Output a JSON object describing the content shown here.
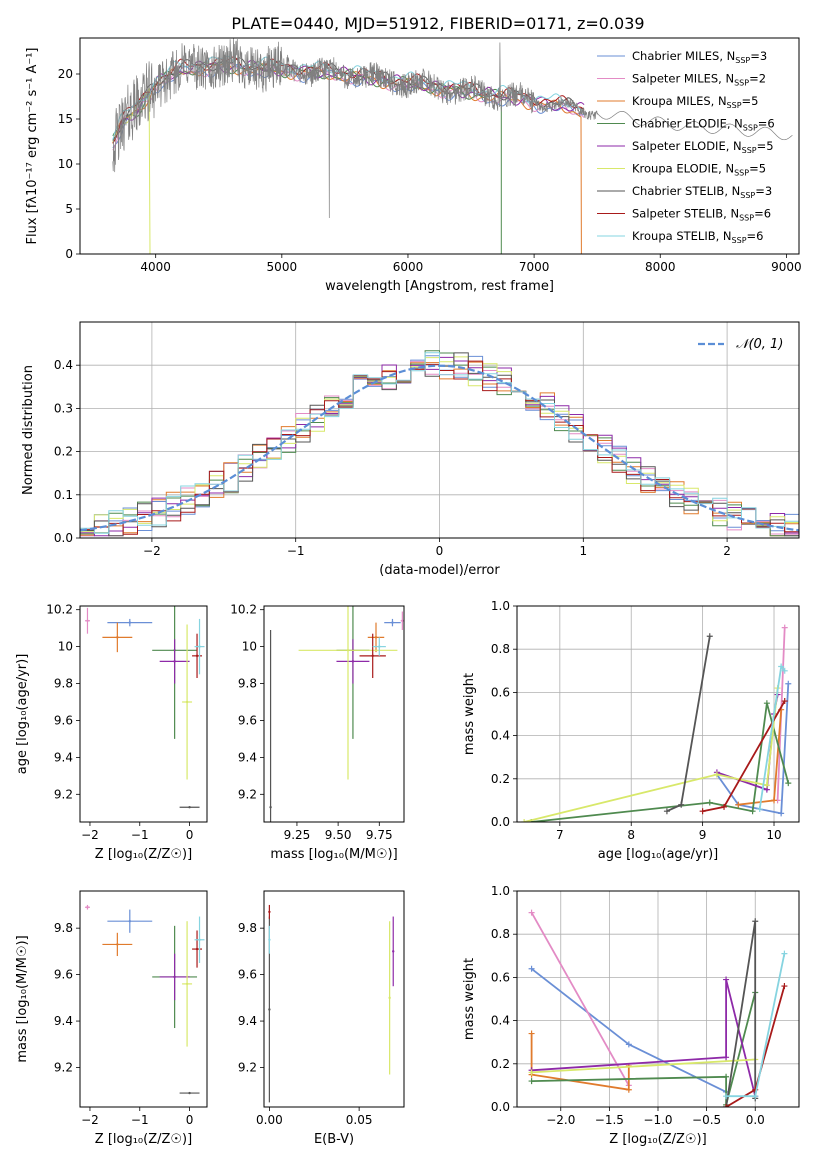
{
  "figure": {
    "title": "PLATE=0440, MJD=51912, FIBERID=0171, z=0.039"
  },
  "models": [
    {
      "name": "Chabrier MILES",
      "color": "#6a8fd6",
      "nssp": "3"
    },
    {
      "name": "Salpeter MILES",
      "color": "#e38bc5",
      "nssp": "2"
    },
    {
      "name": "Kroupa MILES",
      "color": "#e07b2d",
      "nssp": "5"
    },
    {
      "name": "Chabrier ELODIE",
      "color": "#4f8a4f",
      "nssp": "6"
    },
    {
      "name": "Salpeter ELODIE",
      "color": "#8e2aa8",
      "nssp": "5"
    },
    {
      "name": "Kroupa ELODIE",
      "color": "#d8e86a",
      "nssp": "5"
    },
    {
      "name": "Chabrier STELIB",
      "color": "#555555",
      "nssp": "3"
    },
    {
      "name": "Salpeter STELIB",
      "color": "#a81a1a",
      "nssp": "6"
    },
    {
      "name": "Kroupa STELIB",
      "color": "#86d4e0",
      "nssp": "6"
    }
  ],
  "chart_data": [
    {
      "id": "spectrum",
      "type": "line",
      "xlabel": "wavelength [Angstrom, rest frame]",
      "ylabel": "Flux [fλ10⁻¹⁷ erg cm⁻² s⁻¹ A⁻¹]",
      "xlim": [
        3400,
        9100
      ],
      "ylim": [
        0,
        24
      ],
      "xticks": [
        4000,
        5000,
        6000,
        7000,
        8000,
        9000
      ],
      "yticks": [
        0,
        5,
        10,
        15,
        20
      ],
      "grid": false,
      "legend": "top-right",
      "data_color": "#808080",
      "data_range": [
        3660,
        9050
      ],
      "continuum": {
        "x": [
          3660,
          3750,
          3850,
          4000,
          4200,
          4500,
          5000,
          5500,
          6000,
          6500,
          7000,
          7400,
          7800,
          8200,
          8600,
          9050
        ],
        "y": [
          12.5,
          15,
          16,
          19,
          20.5,
          21,
          20.5,
          20,
          19,
          18,
          17,
          16,
          15,
          14.2,
          13.8,
          13.2
        ]
      },
      "model_dropouts": [
        {
          "model": 5,
          "x": 3955
        },
        {
          "model": 3,
          "x": 6740
        },
        {
          "model": 2,
          "x": 7375
        }
      ]
    },
    {
      "id": "residuals",
      "type": "histogram",
      "xlabel": "(data-model)/error",
      "ylabel": "Normed distribution",
      "xlim": [
        -2.5,
        2.5
      ],
      "ylim": [
        0,
        0.5
      ],
      "xticks": [
        -2,
        -1,
        0,
        1,
        2
      ],
      "yticks": [
        0,
        0.1,
        0.2,
        0.3,
        0.4
      ],
      "grid": true,
      "legend": "top-right",
      "reference_label": "𝒩(0, 1)",
      "reference_color": "#5b8ed6",
      "bin_width": 0.1
    },
    {
      "id": "age-vs-z",
      "type": "scatter",
      "xlabel": "Z [log₁₀(Z/Z☉)]",
      "ylabel": "age  [log₁₀(age/yr)]",
      "xlim": [
        -2.2,
        0.35
      ],
      "ylim": [
        9.05,
        10.22
      ],
      "xticks": [
        -2,
        -1,
        0
      ],
      "yticks": [
        9.2,
        9.4,
        9.6,
        9.8,
        10.0,
        10.2
      ],
      "points": [
        {
          "model": 0,
          "x": -1.2,
          "y": 10.13,
          "xerr": 0.45,
          "yerr": 0.02
        },
        {
          "model": 1,
          "x": -2.05,
          "y": 10.14,
          "xerr": 0.05,
          "yerr": 0.07
        },
        {
          "model": 2,
          "x": -1.45,
          "y": 10.05,
          "xerr": 0.3,
          "yerr": 0.08
        },
        {
          "model": 3,
          "x": -0.3,
          "y": 9.98,
          "xerr": 0.45,
          "yerr": 0.48
        },
        {
          "model": 4,
          "x": -0.3,
          "y": 9.92,
          "xerr": 0.3,
          "yerr": 0.12
        },
        {
          "model": 5,
          "x": -0.05,
          "y": 9.7,
          "xerr": 0.1,
          "yerr": 0.42
        },
        {
          "model": 6,
          "x": 0.0,
          "y": 9.13,
          "xerr": 0.2,
          "yerr": 0.0
        },
        {
          "model": 7,
          "x": 0.15,
          "y": 9.95,
          "xerr": 0.1,
          "yerr": 0.12
        },
        {
          "model": 8,
          "x": 0.2,
          "y": 10.0,
          "xerr": 0.1,
          "yerr": 0.15
        }
      ]
    },
    {
      "id": "age-vs-mass",
      "type": "scatter",
      "xlabel": "mass [log₁₀(M/M☉)]",
      "ylabel": "",
      "xlim": [
        9.05,
        9.9
      ],
      "ylim": [
        9.05,
        10.22
      ],
      "xticks": [
        9.25,
        9.5,
        9.75
      ],
      "tick_labels": [
        "9.25",
        "9.50",
        "9.75"
      ],
      "yticks": [
        9.2,
        9.4,
        9.6,
        9.8,
        10.0,
        10.2
      ],
      "points": [
        {
          "model": 0,
          "x": 9.83,
          "y": 10.13,
          "xerr": 0.05,
          "yerr": 0.02
        },
        {
          "model": 1,
          "x": 9.89,
          "y": 10.14,
          "xerr": 0.01,
          "yerr": 0.05
        },
        {
          "model": 2,
          "x": 9.73,
          "y": 10.05,
          "xerr": 0.05,
          "yerr": 0.08
        },
        {
          "model": 3,
          "x": 9.59,
          "y": 9.98,
          "xerr": 0.1,
          "yerr": 0.48
        },
        {
          "model": 4,
          "x": 9.59,
          "y": 9.92,
          "xerr": 0.1,
          "yerr": 0.12
        },
        {
          "model": 5,
          "x": 9.56,
          "y": 9.98,
          "xerr": 0.3,
          "yerr": 0.7
        },
        {
          "model": 6,
          "x": 9.09,
          "y": 9.13,
          "xerr": 0.0,
          "yerr": 0.96
        },
        {
          "model": 7,
          "x": 9.71,
          "y": 9.95,
          "xerr": 0.08,
          "yerr": 0.12
        },
        {
          "model": 8,
          "x": 9.75,
          "y": 10.0,
          "xerr": 0.04,
          "yerr": 0.05
        }
      ]
    },
    {
      "id": "mass-weight-vs-age",
      "type": "line",
      "xlabel": "age  [log₁₀(age/yr)]",
      "ylabel": "mass weight",
      "xlim": [
        6.4,
        10.35
      ],
      "ylim": [
        0,
        1.0
      ],
      "xticks": [
        7,
        8,
        9,
        10
      ],
      "yticks": [
        0,
        0.2,
        0.4,
        0.6,
        0.8,
        1.0
      ],
      "grid": true,
      "series": [
        {
          "model": 0,
          "x": [
            9.2,
            9.5,
            10.1,
            10.2
          ],
          "y": [
            0.22,
            0.08,
            0.04,
            0.64
          ]
        },
        {
          "model": 1,
          "x": [
            10.05,
            10.15
          ],
          "y": [
            0.1,
            0.9
          ]
        },
        {
          "model": 2,
          "x": [
            9.5,
            10.0,
            10.1
          ],
          "y": [
            0.08,
            0.1,
            0.52
          ]
        },
        {
          "model": 3,
          "x": [
            6.6,
            9.1,
            9.7,
            9.9,
            10.2
          ],
          "y": [
            0.0,
            0.09,
            0.05,
            0.55,
            0.18
          ]
        },
        {
          "model": 4,
          "x": [
            9.2,
            9.9,
            10.0,
            10.05
          ],
          "y": [
            0.23,
            0.15,
            0.5,
            0.59
          ]
        },
        {
          "model": 5,
          "x": [
            6.5,
            9.2,
            9.9,
            10.05
          ],
          "y": [
            0.0,
            0.22,
            0.17,
            0.62
          ]
        },
        {
          "model": 6,
          "x": [
            8.5,
            8.7,
            9.1
          ],
          "y": [
            0.05,
            0.08,
            0.86
          ]
        },
        {
          "model": 7,
          "x": [
            9.0,
            9.3,
            10.15
          ],
          "y": [
            0.05,
            0.07,
            0.56
          ]
        },
        {
          "model": 8,
          "x": [
            9.8,
            10.1,
            10.15
          ],
          "y": [
            0.06,
            0.72,
            0.7
          ]
        }
      ]
    },
    {
      "id": "mass-vs-z",
      "type": "scatter",
      "xlabel": "Z [log₁₀(Z/Z☉)]",
      "ylabel": "mass [log₁₀(M/M☉)]",
      "xlim": [
        -2.2,
        0.35
      ],
      "ylim": [
        9.03,
        9.96
      ],
      "xticks": [
        -2,
        -1,
        0
      ],
      "yticks": [
        9.2,
        9.4,
        9.6,
        9.8
      ],
      "points": [
        {
          "model": 0,
          "x": -1.2,
          "y": 9.83,
          "xerr": 0.45,
          "yerr": 0.05
        },
        {
          "model": 1,
          "x": -2.05,
          "y": 9.89,
          "xerr": 0.05,
          "yerr": 0.01
        },
        {
          "model": 2,
          "x": -1.45,
          "y": 9.73,
          "xerr": 0.3,
          "yerr": 0.05
        },
        {
          "model": 3,
          "x": -0.3,
          "y": 9.59,
          "xerr": 0.45,
          "yerr": 0.22
        },
        {
          "model": 4,
          "x": -0.3,
          "y": 9.59,
          "xerr": 0.3,
          "yerr": 0.1
        },
        {
          "model": 5,
          "x": -0.05,
          "y": 9.56,
          "xerr": 0.1,
          "yerr": 0.27
        },
        {
          "model": 6,
          "x": 0.0,
          "y": 9.09,
          "xerr": 0.2,
          "yerr": 0.0
        },
        {
          "model": 7,
          "x": 0.15,
          "y": 9.71,
          "xerr": 0.1,
          "yerr": 0.08
        },
        {
          "model": 8,
          "x": 0.2,
          "y": 9.75,
          "xerr": 0.1,
          "yerr": 0.1
        }
      ]
    },
    {
      "id": "mass-vs-ebv",
      "type": "scatter",
      "xlabel": "E(B-V)",
      "ylabel": "",
      "xlim": [
        -0.003,
        0.075
      ],
      "ylim": [
        9.03,
        9.96
      ],
      "xticks": [
        0.0,
        0.05
      ],
      "tick_labels": [
        "0.00",
        "0.05"
      ],
      "yticks": [
        9.2,
        9.4,
        9.6,
        9.8
      ],
      "points": [
        {
          "model": 6,
          "x": 0.0,
          "y": 9.45,
          "xerr": 0.0,
          "yerr": 0.4
        },
        {
          "model": 7,
          "x": 0.0,
          "y": 9.87,
          "xerr": 0.0,
          "yerr": 0.03
        },
        {
          "model": 8,
          "x": 0.0,
          "y": 9.75,
          "xerr": 0.0,
          "yerr": 0.06
        },
        {
          "model": 5,
          "x": 0.067,
          "y": 9.5,
          "xerr": 0.0,
          "yerr": 0.33
        },
        {
          "model": 4,
          "x": 0.069,
          "y": 9.7,
          "xerr": 0.0,
          "yerr": 0.15
        }
      ]
    },
    {
      "id": "mass-weight-vs-z",
      "type": "line",
      "xlabel": "Z [log₁₀(Z/Z☉)]",
      "ylabel": "mass weight",
      "xlim": [
        -2.45,
        0.45
      ],
      "ylim": [
        0,
        1.0
      ],
      "xticks": [
        -2.0,
        -1.5,
        -1.0,
        -0.5,
        0.0
      ],
      "tick_labels": [
        "−2.0",
        "−1.5",
        "−1.0",
        "−0.5",
        "0.0"
      ],
      "yticks": [
        0,
        0.2,
        0.4,
        0.6,
        0.8,
        1.0
      ],
      "grid": true,
      "series": [
        {
          "model": 0,
          "x": [
            -2.3,
            -1.3,
            -0.3
          ],
          "y": [
            0.64,
            0.29,
            0.07
          ]
        },
        {
          "model": 1,
          "x": [
            -2.3,
            -1.3
          ],
          "y": [
            0.9,
            0.1
          ]
        },
        {
          "model": 2,
          "x": [
            -2.3,
            -2.3,
            -1.3,
            -1.3
          ],
          "y": [
            0.34,
            0.15,
            0.08,
            0.19
          ]
        },
        {
          "model": 3,
          "x": [
            -2.3,
            -0.3,
            -0.3,
            0.0
          ],
          "y": [
            0.12,
            0.14,
            0.01,
            0.53
          ]
        },
        {
          "model": 4,
          "x": [
            -2.3,
            -0.3,
            -0.3,
            0.0
          ],
          "y": [
            0.17,
            0.23,
            0.59,
            0.05
          ]
        },
        {
          "model": 5,
          "x": [
            -2.3,
            0.0
          ],
          "y": [
            0.16,
            0.22
          ]
        },
        {
          "model": 6,
          "x": [
            -0.3,
            0.0,
            0.0
          ],
          "y": [
            0.0,
            0.86,
            0.04
          ]
        },
        {
          "model": 7,
          "x": [
            -0.3,
            0.0,
            0.3
          ],
          "y": [
            0.0,
            0.08,
            0.56
          ]
        },
        {
          "model": 8,
          "x": [
            -0.3,
            0.0,
            0.3
          ],
          "y": [
            0.05,
            0.05,
            0.71
          ]
        }
      ]
    }
  ]
}
